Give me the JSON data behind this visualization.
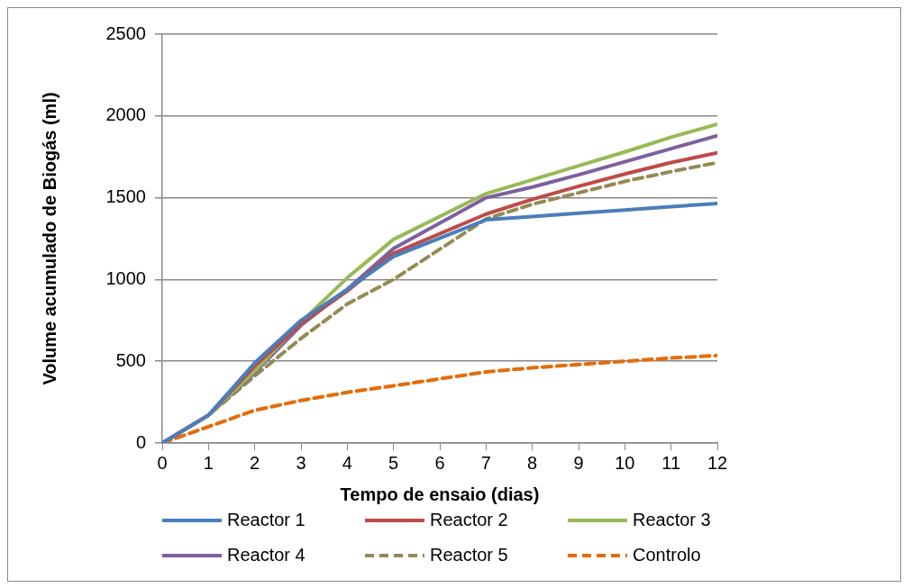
{
  "chart_data": {
    "type": "line",
    "xlabel": "Tempo de ensaio (dias)",
    "ylabel": "Volume acumulado de Biogás (ml)",
    "x": [
      0,
      1,
      2,
      3,
      4,
      5,
      7,
      8,
      9,
      10,
      11,
      12
    ],
    "xlim": [
      0,
      12
    ],
    "xticks": [
      0,
      1,
      2,
      3,
      4,
      5,
      6,
      7,
      8,
      9,
      10,
      11,
      12
    ],
    "ylim": [
      0,
      2500
    ],
    "yticks": [
      0,
      500,
      1000,
      1500,
      2000,
      2500
    ],
    "grid": "y",
    "legend": "bottom",
    "marker": "none",
    "series": [
      {
        "name": "Reactor 1",
        "color": "#4a7ebb",
        "values": [
          0,
          170,
          490,
          750,
          940,
          1140,
          1365,
          1385,
          1405,
          1425,
          1445,
          1465
        ]
      },
      {
        "name": "Reactor 2",
        "color": "#be4b48",
        "values": [
          0,
          170,
          470,
          730,
          930,
          1160,
          1400,
          1490,
          1570,
          1645,
          1715,
          1775
        ]
      },
      {
        "name": "Reactor 3",
        "color": "#98b954",
        "values": [
          0,
          170,
          440,
          740,
          1010,
          1245,
          1525,
          1610,
          1695,
          1780,
          1870,
          1950
        ]
      },
      {
        "name": "Reactor 4",
        "color": "#7d60a0",
        "values": [
          0,
          170,
          430,
          720,
          940,
          1190,
          1500,
          1565,
          1640,
          1720,
          1800,
          1880
        ]
      },
      {
        "name": "Reactor 5",
        "color": "#948a54",
        "line_style": "dashed",
        "values": [
          0,
          170,
          410,
          640,
          850,
          1000,
          1370,
          1460,
          1530,
          1600,
          1660,
          1715
        ]
      },
      {
        "name": "Controlo",
        "color": "#e46c0a",
        "line_style": "dashed",
        "values": [
          0,
          100,
          200,
          260,
          310,
          350,
          435,
          460,
          480,
          500,
          520,
          535
        ]
      }
    ]
  }
}
